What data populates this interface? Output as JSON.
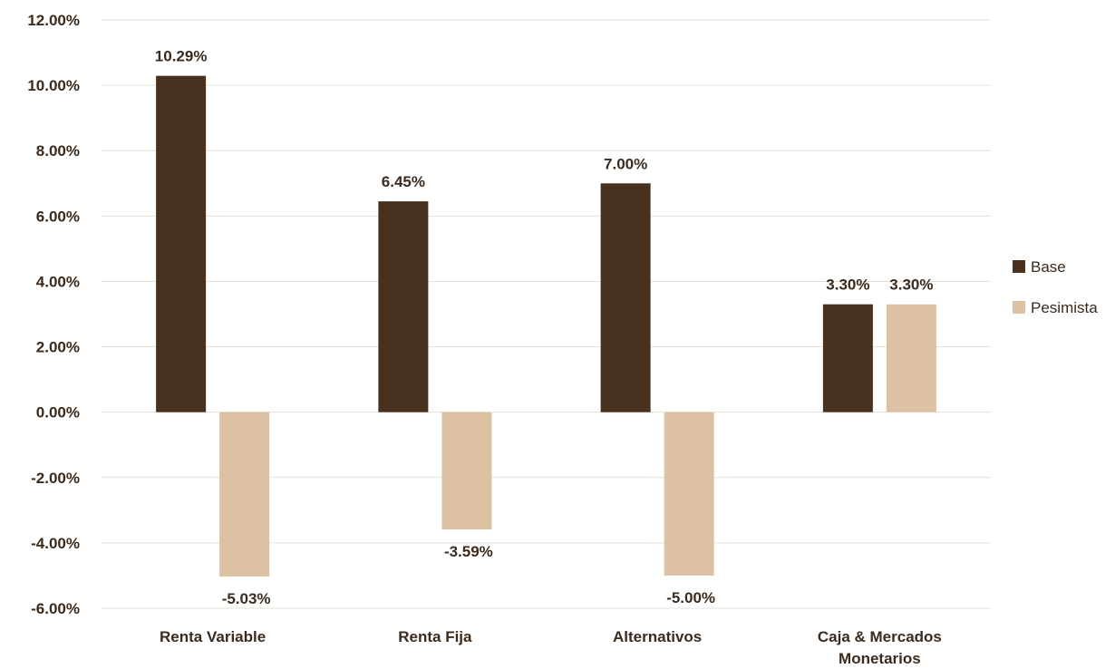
{
  "chart_data": {
    "type": "bar",
    "categories": [
      [
        "Renta Variable"
      ],
      [
        "Renta Fija"
      ],
      [
        "Alternativos"
      ],
      [
        "Caja & Mercados",
        "Monetarios"
      ]
    ],
    "series": [
      {
        "name": "Base",
        "color": "#48311f",
        "values": [
          10.29,
          6.45,
          7.0,
          3.3
        ],
        "labels": [
          "10.29%",
          "6.45%",
          "7.00%",
          "3.30%"
        ]
      },
      {
        "name": "Pesimista",
        "color": "#dcc1a3",
        "values": [
          -5.03,
          -3.59,
          -5.0,
          3.3
        ],
        "labels": [
          "-5.03%",
          "-3.59%",
          "-5.00%",
          "3.30%"
        ]
      }
    ],
    "ylim": [
      -6,
      12
    ],
    "yticks": [
      12,
      10,
      8,
      6,
      4,
      2,
      0,
      -2,
      -4,
      -6
    ],
    "ytick_labels": [
      "12.00%",
      "10.00%",
      "8.00%",
      "6.00%",
      "4.00%",
      "2.00%",
      "0.00%",
      "-2.00%",
      "-4.00%",
      "-6.00%"
    ],
    "grid": true,
    "legend_position": "right",
    "title": "",
    "xlabel": "",
    "ylabel": ""
  }
}
